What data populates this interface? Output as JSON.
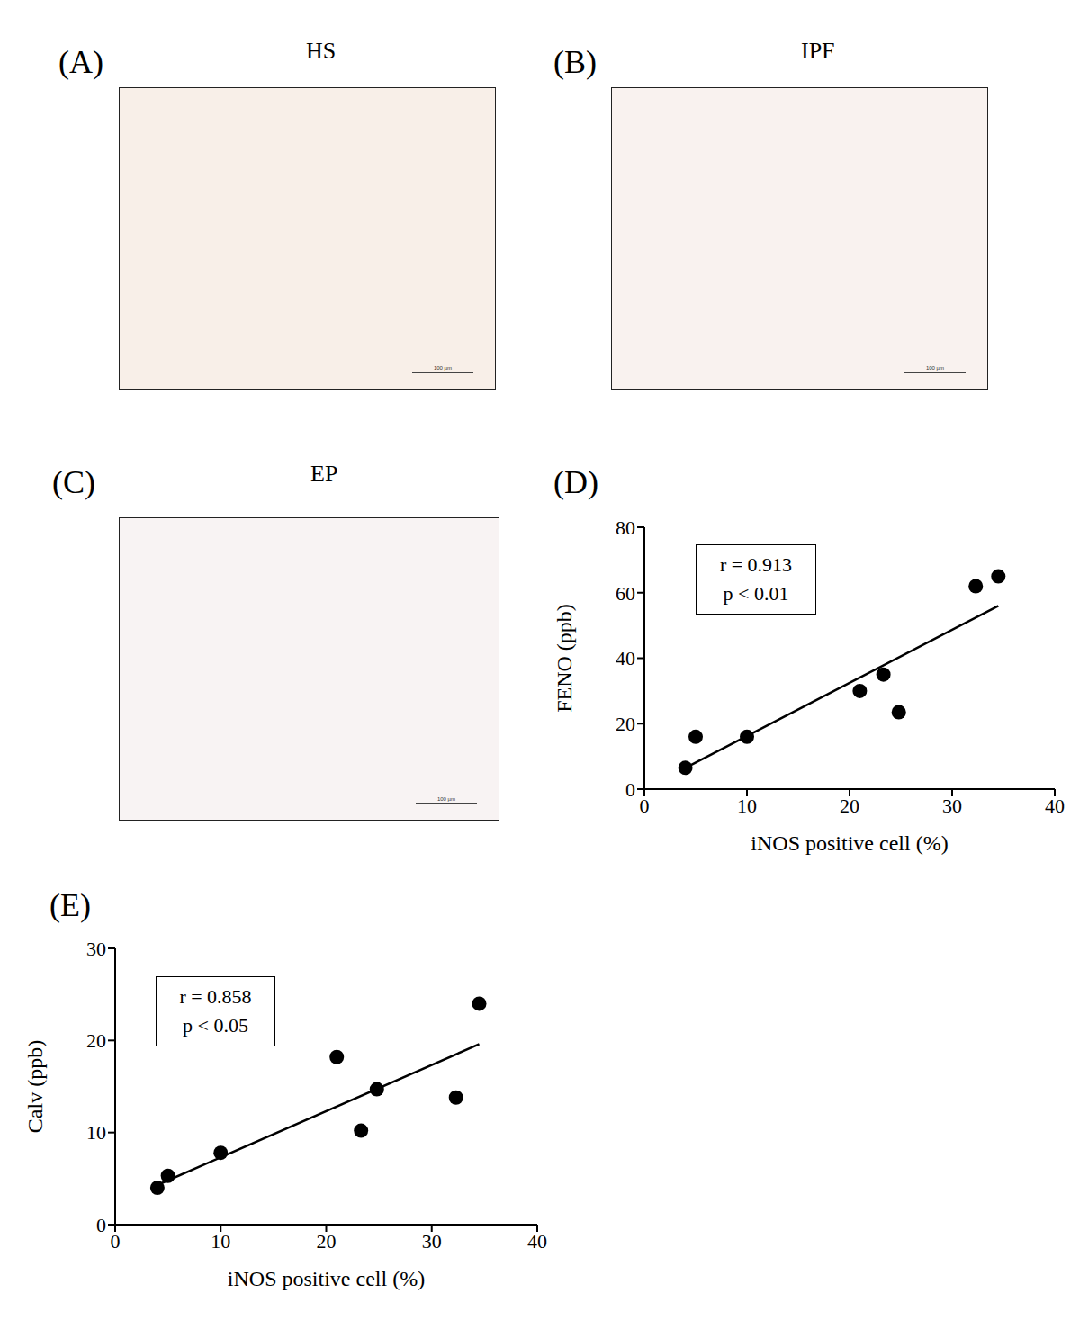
{
  "images": [
    {
      "label": "(A)",
      "title": "HS",
      "scale_bar": "100 µm",
      "color": "#f8efe8"
    },
    {
      "label": "(B)",
      "title": "IPF",
      "scale_bar": "100 µm",
      "color": "#f9f2ef"
    },
    {
      "label": "(C)",
      "title": "EP",
      "scale_bar": "100 µm",
      "color": "#f8f3f3"
    }
  ],
  "chart_data": [
    {
      "type": "scatter",
      "title": "(D)",
      "x_label": "iNOS positive cell (%)",
      "y_label": "FENO (ppb)",
      "x": [
        4,
        5,
        10,
        21,
        23.3,
        24.8,
        32.3,
        34.5
      ],
      "values": [
        6.5,
        16,
        16,
        30,
        35,
        23.5,
        62,
        65
      ],
      "fit": {
        "x": [
          4,
          34.5
        ],
        "values": [
          6.5,
          56
        ]
      },
      "annotations": [
        "r = 0.913",
        "p < 0.01"
      ],
      "xlim": [
        0,
        40
      ],
      "xticks": [
        0,
        10,
        20,
        30,
        40
      ],
      "ylim": [
        0,
        80
      ],
      "yticks": [
        0,
        20,
        40,
        60,
        80
      ],
      "color": "#000000",
      "marker": "circle",
      "grid": false
    },
    {
      "type": "scatter",
      "title": "(E)",
      "x_label": "iNOS positive cell (%)",
      "y_label": "Calv (ppb)",
      "x": [
        4,
        5,
        10,
        21,
        23.3,
        24.8,
        32.3,
        34.5
      ],
      "values": [
        4,
        5.3,
        7.8,
        18.2,
        10.2,
        14.7,
        13.8,
        24
      ],
      "fit": {
        "x": [
          4,
          34.5
        ],
        "values": [
          4.3,
          19.6
        ]
      },
      "annotations": [
        "r = 0.858",
        "p < 0.05"
      ],
      "xlim": [
        0,
        40
      ],
      "xticks": [
        0,
        10,
        20,
        30,
        40
      ],
      "ylim": [
        0,
        30
      ],
      "yticks": [
        0,
        10,
        20,
        30
      ],
      "color": "#000000",
      "marker": "circle",
      "grid": false
    }
  ]
}
